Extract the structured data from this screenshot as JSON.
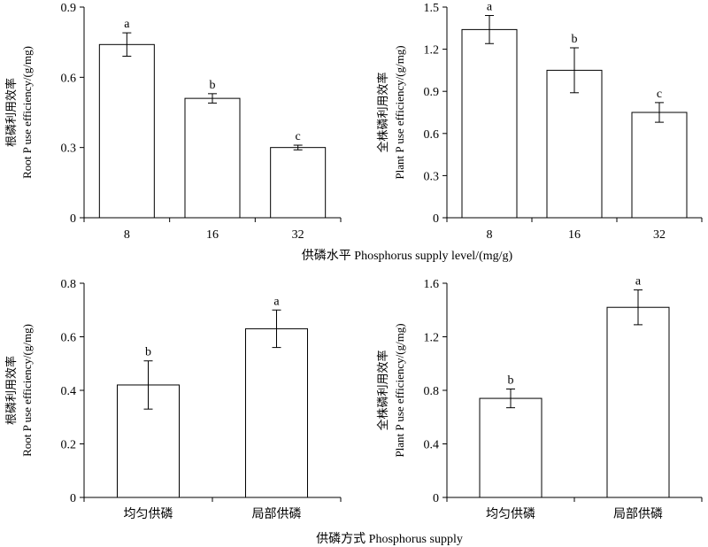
{
  "figure": {
    "xlabel_top": "供磷水平 Phosphorus supply level/(mg/g)",
    "xlabel_bottom": "供磷方式 Phosphorus supply"
  },
  "chart_data": [
    {
      "type": "bar",
      "panel": "top-left",
      "categories": [
        "8",
        "16",
        "32"
      ],
      "values": [
        0.74,
        0.51,
        0.3
      ],
      "errors": [
        0.05,
        0.02,
        0.01
      ],
      "letters": [
        "a",
        "b",
        "c"
      ],
      "ylabel_cn": "根磷利用效率",
      "ylabel_en": "Root P use efficiency/(g/mg)",
      "ylim": [
        0,
        0.9
      ],
      "yticks": [
        0,
        0.3,
        0.6,
        0.9
      ],
      "ytick_labels": [
        "0",
        "0.3",
        "0.6",
        "0.9"
      ]
    },
    {
      "type": "bar",
      "panel": "top-right",
      "categories": [
        "8",
        "16",
        "32"
      ],
      "values": [
        1.34,
        1.05,
        0.75
      ],
      "errors": [
        0.1,
        0.16,
        0.07
      ],
      "letters": [
        "a",
        "b",
        "c"
      ],
      "ylabel_cn": "全株磷利用效率",
      "ylabel_en": "Plant P use efficiency/(g/mg)",
      "ylim": [
        0,
        1.5
      ],
      "yticks": [
        0,
        0.3,
        0.6,
        0.9,
        1.2,
        1.5
      ],
      "ytick_labels": [
        "0",
        "0.3",
        "0.6",
        "0.9",
        "1.2",
        "1.5"
      ]
    },
    {
      "type": "bar",
      "panel": "bottom-left",
      "categories": [
        "均匀供磷",
        "局部供磷"
      ],
      "values": [
        0.42,
        0.63
      ],
      "errors": [
        0.09,
        0.07
      ],
      "letters": [
        "b",
        "a"
      ],
      "ylabel_cn": "根磷利用效率",
      "ylabel_en": "Root P use efficiency/(g/mg)",
      "ylim": [
        0,
        0.8
      ],
      "yticks": [
        0,
        0.2,
        0.4,
        0.6,
        0.8
      ],
      "ytick_labels": [
        "0",
        "0.2",
        "0.4",
        "0.6",
        "0.8"
      ]
    },
    {
      "type": "bar",
      "panel": "bottom-right",
      "categories": [
        "均匀供磷",
        "局部供磷"
      ],
      "values": [
        0.74,
        1.42
      ],
      "errors": [
        0.07,
        0.13
      ],
      "letters": [
        "b",
        "a"
      ],
      "ylabel_cn": "全株磷利用效率",
      "ylabel_en": "Plant P use efficiency/(g/mg)",
      "ylim": [
        0,
        1.6
      ],
      "yticks": [
        0,
        0.4,
        0.8,
        1.2,
        1.6
      ],
      "ytick_labels": [
        "0",
        "0.4",
        "0.8",
        "1.2",
        "1.6"
      ]
    }
  ]
}
